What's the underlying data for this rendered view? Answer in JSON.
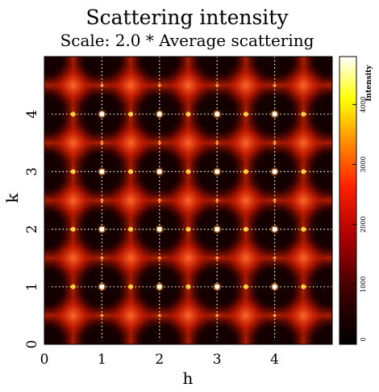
{
  "chart_data": {
    "type": "heatmap",
    "title": "Scattering intensity",
    "subtitle": "Scale: 2.0 * Average scattering",
    "xlabel": "h",
    "ylabel": "k",
    "xlim": [
      0,
      5
    ],
    "ylim": [
      0,
      5
    ],
    "x_ticks": [
      "0",
      "1",
      "2",
      "3",
      "4"
    ],
    "y_ticks": [
      "0",
      "1",
      "2",
      "3",
      "4"
    ],
    "colorbar": {
      "label": "Intensity",
      "range": [
        0,
        4800
      ],
      "ticks": [
        "0",
        "1000",
        "2000",
        "3000",
        "4000"
      ],
      "colormap": "hot"
    },
    "grid": true,
    "grid_style": "dotted",
    "features": {
      "bright_peaks_hk": [
        [
          1,
          1
        ],
        [
          2,
          1
        ],
        [
          3,
          1
        ],
        [
          4,
          1
        ],
        [
          1,
          2
        ],
        [
          2,
          2
        ],
        [
          3,
          2
        ],
        [
          4,
          2
        ],
        [
          1,
          3
        ],
        [
          2,
          3
        ],
        [
          3,
          3
        ],
        [
          4,
          3
        ],
        [
          1,
          4
        ],
        [
          2,
          4
        ],
        [
          3,
          4
        ],
        [
          4,
          4
        ]
      ],
      "diffuse_line_positions": [
        0.5,
        1.5,
        2.5,
        3.5,
        4.5
      ]
    },
    "colors": {
      "background": "#ffffff",
      "map_low": "#000000",
      "map_mid": "#ff0000",
      "map_high": "#ffffff",
      "grid": "#ffffcc"
    }
  }
}
